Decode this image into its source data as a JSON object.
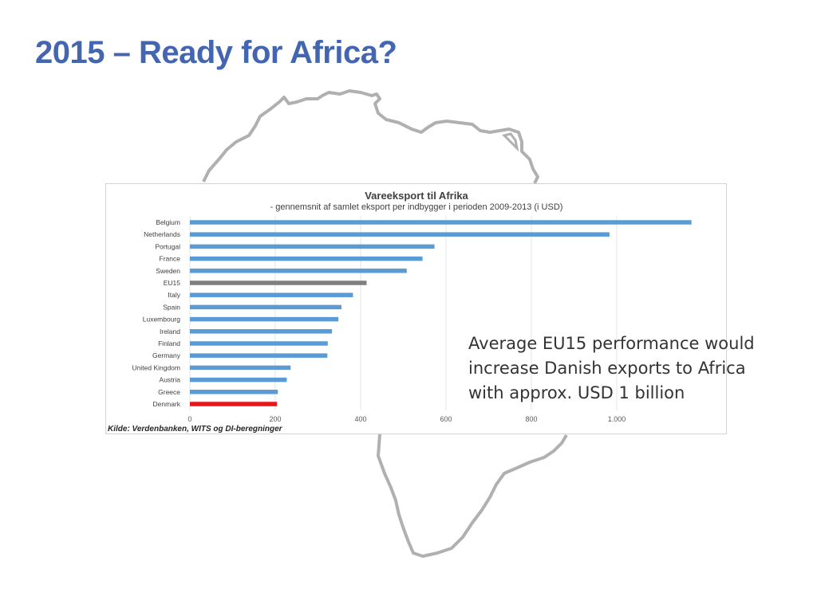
{
  "slide": {
    "title": "2015 – Ready for Africa?",
    "callout": "Average EU15 performance would increase Danish exports to Africa with approx. USD 1 billion"
  },
  "colors": {
    "title": "#4466b0",
    "bar_default": "#5b9bd5",
    "bar_eu15": "#7f7f7f",
    "bar_denmark": "#e8151b",
    "map_outline": "#b0b0b0"
  },
  "chart_data": {
    "type": "bar",
    "orientation": "horizontal",
    "title": "Vareeksport til Afrika",
    "subtitle": "- gennemsnit af samlet eksport per indbygger i perioden 2009-2013 (i USD)",
    "source": "Kilde: Verdenbanken, WITS og DI-beregninger",
    "categories": [
      "Belgium",
      "Netherlands",
      "Portugal",
      "France",
      "Sweden",
      "EU15",
      "Italy",
      "Spain",
      "Luxembourg",
      "Ireland",
      "Finland",
      "Germany",
      "United Kingdom",
      "Austria",
      "Greece",
      "Denmark"
    ],
    "values": [
      1175,
      983,
      573,
      545,
      508,
      414,
      382,
      355,
      348,
      333,
      323,
      322,
      236,
      227,
      206,
      204
    ],
    "highlights": {
      "EU15": "gray",
      "Denmark": "red"
    },
    "xlim": [
      0,
      1200
    ],
    "xticks": [
      0,
      200,
      400,
      600,
      800,
      1000
    ],
    "xtick_labels": [
      "0",
      "200",
      "400",
      "600",
      "800",
      "1.000"
    ],
    "grid": "vertical",
    "xlabel": "",
    "ylabel": ""
  }
}
